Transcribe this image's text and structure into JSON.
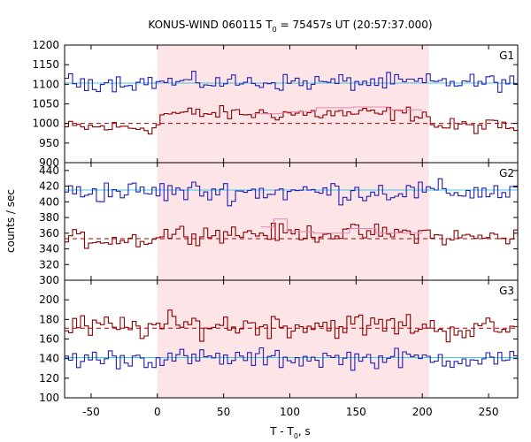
{
  "chart_data": {
    "type": "line",
    "title_main": "KONUS-WIND 060115 T",
    "title_sub": "0",
    "title_rest": " = 75457s UT (20:57:37.000)",
    "xlabel_main": "T - T",
    "xlabel_sub": "0",
    "xlabel_rest": ", s",
    "ylabel": "counts / sec",
    "xlim": [
      -70,
      272
    ],
    "xticks": [
      -50,
      0,
      50,
      100,
      150,
      200,
      250
    ],
    "highlight_interval": [
      0,
      205
    ],
    "colors": {
      "blue": "#1f1fb4",
      "red": "#8b0000",
      "background_fit_blue": "#40c8e0",
      "background_fit_red": "#b00000",
      "pulse_model": "#f080b0",
      "highlight": "#fde4e7"
    },
    "panels": [
      {
        "label": "G1",
        "ylim": [
          900,
          1200
        ],
        "yticks": [
          900,
          950,
          1000,
          1050,
          1100,
          1150,
          1200
        ],
        "blue_mean": 1105,
        "blue_spread": 15,
        "red_pre": 990,
        "red_in": 1025,
        "red_post": 993,
        "red_spread": 13,
        "bg_blue": 1103,
        "bg_red": 1000,
        "pulse": [
          [
            72,
            92,
            1025
          ],
          [
            100,
            120,
            1030
          ],
          [
            120,
            148,
            1040
          ],
          [
            148,
            175,
            1042
          ],
          [
            175,
            200,
            1035
          ]
        ]
      },
      {
        "label": "G2",
        "ylim": [
          300,
          450
        ],
        "yticks": [
          300,
          320,
          340,
          360,
          380,
          400,
          420,
          440
        ],
        "blue_mean": 413,
        "blue_spread": 10,
        "red_pre": 352,
        "red_in": 360,
        "red_post": 355,
        "red_spread": 8,
        "bg_blue": 415,
        "bg_red": 353,
        "pulse": [
          [
            78,
            88,
            368
          ],
          [
            88,
            98,
            378
          ],
          [
            98,
            118,
            362
          ],
          [
            118,
            145,
            360
          ],
          [
            145,
            165,
            366
          ],
          [
            165,
            200,
            360
          ]
        ]
      },
      {
        "label": "G3",
        "ylim": [
          100,
          220
        ],
        "yticks": [
          100,
          120,
          140,
          160,
          180,
          200
        ],
        "blue_mean": 140,
        "blue_spread": 7,
        "red_pre": 172,
        "red_in": 174,
        "red_post": 170,
        "red_spread": 9,
        "bg_blue": 141,
        "bg_red": 171,
        "pulse": []
      }
    ]
  }
}
